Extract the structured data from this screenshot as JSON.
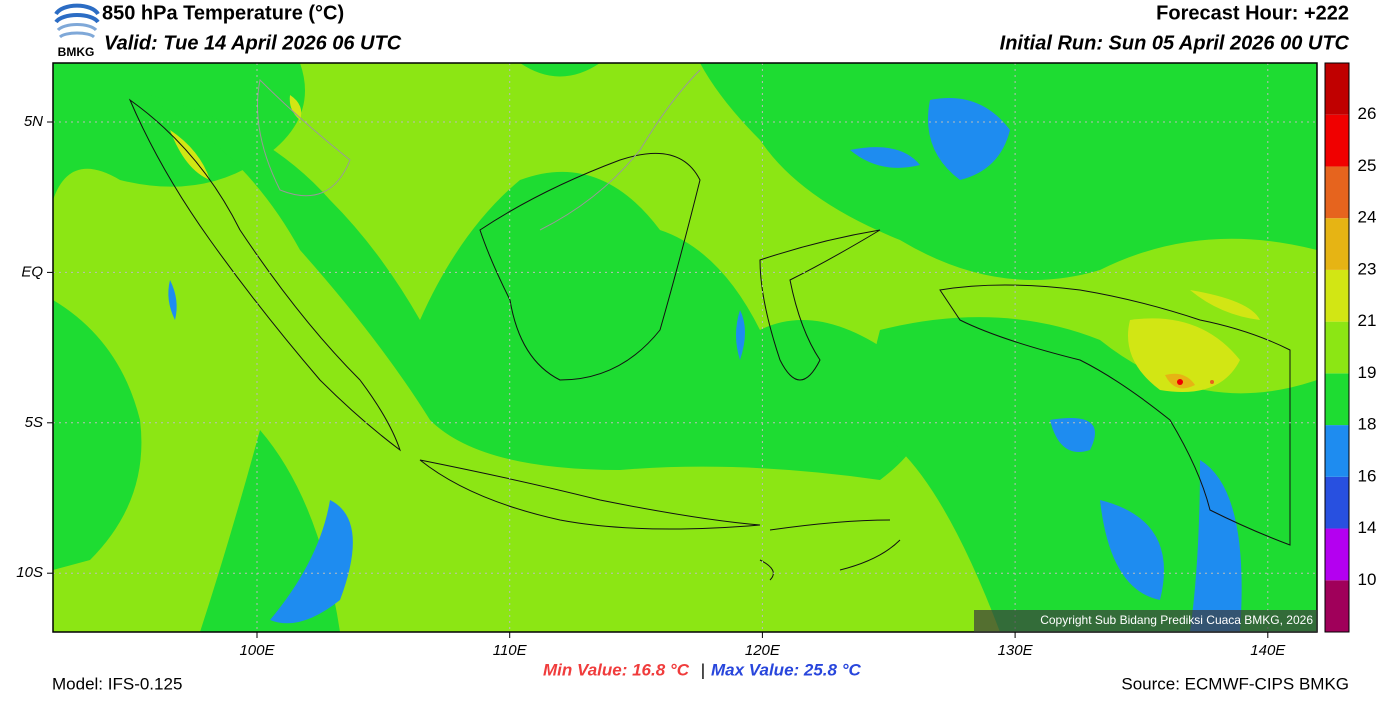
{
  "logo": {
    "text": "BMKG"
  },
  "header": {
    "title": "850 hPa Temperature (°C)",
    "valid": "Valid: Tue 14 April 2026 06 UTC",
    "forecast_hour": "Forecast Hour: +222",
    "initial_run": "Initial Run: Sun 05 April 2026 00 UTC"
  },
  "map": {
    "lat_labels": [
      "5N",
      "EQ",
      "5S",
      "10S"
    ],
    "lon_labels": [
      "100E",
      "110E",
      "120E",
      "130E",
      "140E"
    ],
    "copyright": "Copyright Sub Bidang Prediksi Cuaca BMKG, 2026"
  },
  "colorbar": {
    "colors": [
      "#a0005a",
      "#b400f0",
      "#2850e0",
      "#1e8cf0",
      "#1edc32",
      "#8ce614",
      "#d2e614",
      "#e6b414",
      "#e6641e",
      "#f00000",
      "#c00000"
    ],
    "labels": [
      "10",
      "14",
      "16",
      "18",
      "19",
      "21",
      "23",
      "24",
      "25",
      "26"
    ]
  },
  "footer": {
    "model": "Model: IFS-0.125",
    "min_value": "Min Value: 16.8 °C",
    "separator": "|",
    "max_value": "Max Value: 25.8 °C",
    "source": "Source: ECMWF-CIPS BMKG"
  }
}
